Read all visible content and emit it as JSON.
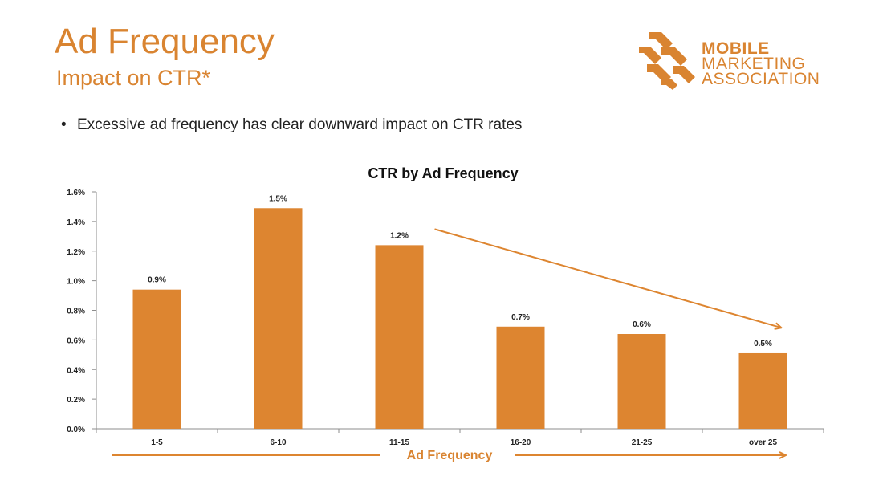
{
  "header": {
    "title": "Ad Frequency",
    "subtitle": "Impact on CTR*"
  },
  "logo": {
    "line1": "MOBILE",
    "line2": "MARKETING",
    "line3": "ASSOCIATION"
  },
  "bullet": {
    "symbol": "•",
    "text": "Excessive ad frequency has clear downward impact on CTR rates"
  },
  "colors": {
    "accent": "#d98431",
    "bar": "#dd8530"
  },
  "chart_data": {
    "type": "bar",
    "title": "CTR by Ad Frequency",
    "xlabel": "Ad Frequency",
    "ylabel": "",
    "categories": [
      "1-5",
      "6-10",
      "11-15",
      "16-20",
      "21-25",
      "over 25"
    ],
    "values": [
      0.94,
      1.49,
      1.24,
      0.69,
      0.64,
      0.51
    ],
    "data_labels": [
      "0.9%",
      "1.5%",
      "1.2%",
      "0.7%",
      "0.6%",
      "0.5%"
    ],
    "yticks": [
      "0.0%",
      "0.2%",
      "0.4%",
      "0.6%",
      "0.8%",
      "1.0%",
      "1.2%",
      "1.4%",
      "1.6%"
    ],
    "ylim": [
      0,
      1.6
    ],
    "grid": false,
    "legend": "none",
    "annotations": [
      "downward trend arrow from 11-15 to over 25"
    ]
  }
}
